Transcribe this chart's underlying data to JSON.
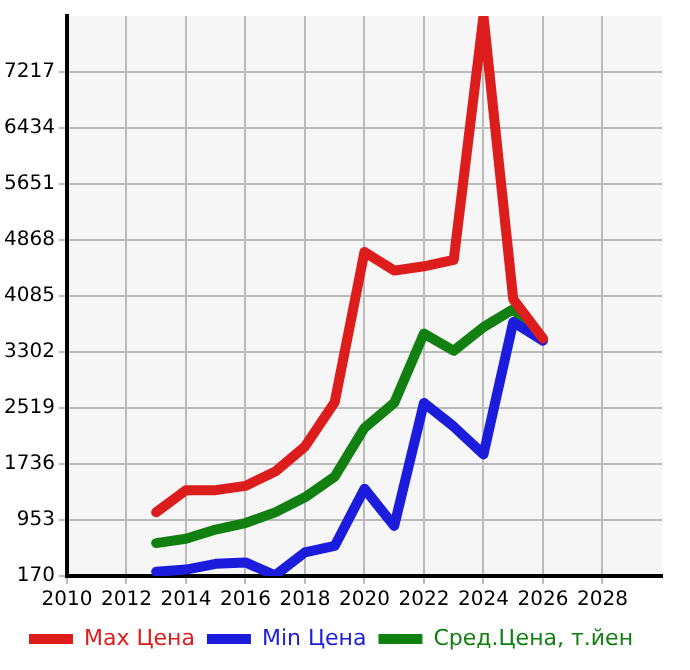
{
  "chart_data": {
    "type": "line",
    "x": [
      2013,
      2014,
      2015,
      2016,
      2017,
      2018,
      2019,
      2020,
      2021,
      2022,
      2023,
      2024,
      2025,
      2026
    ],
    "series": [
      {
        "name": "Max Цена",
        "color": "#dd1c1c",
        "values": [
          1060,
          1370,
          1370,
          1430,
          1630,
          1980,
          2600,
          4700,
          4440,
          4500,
          4590,
          8000,
          4040,
          3490
        ]
      },
      {
        "name": "Min Цена",
        "color": "#1c1cdd",
        "values": [
          230,
          260,
          340,
          360,
          180,
          500,
          590,
          1390,
          870,
          2590,
          2260,
          1870,
          3720,
          3460
        ]
      },
      {
        "name": "Сред.Цена, т.йен",
        "color": "#118011",
        "values": [
          630,
          690,
          820,
          910,
          1060,
          1270,
          1560,
          2240,
          2590,
          3560,
          3320,
          3650,
          3900,
          3480
        ]
      }
    ],
    "xlim": [
      2010,
      2030
    ],
    "xticks": [
      2010,
      2012,
      2014,
      2016,
      2018,
      2020,
      2022,
      2024,
      2026,
      2028
    ],
    "ylim": [
      170,
      8000
    ],
    "yticks": [
      170,
      953,
      1736,
      2519,
      3302,
      4085,
      4868,
      5651,
      6434,
      7217
    ],
    "grid": true,
    "legend": "bottom",
    "marker": "none",
    "line_style": "solid"
  }
}
